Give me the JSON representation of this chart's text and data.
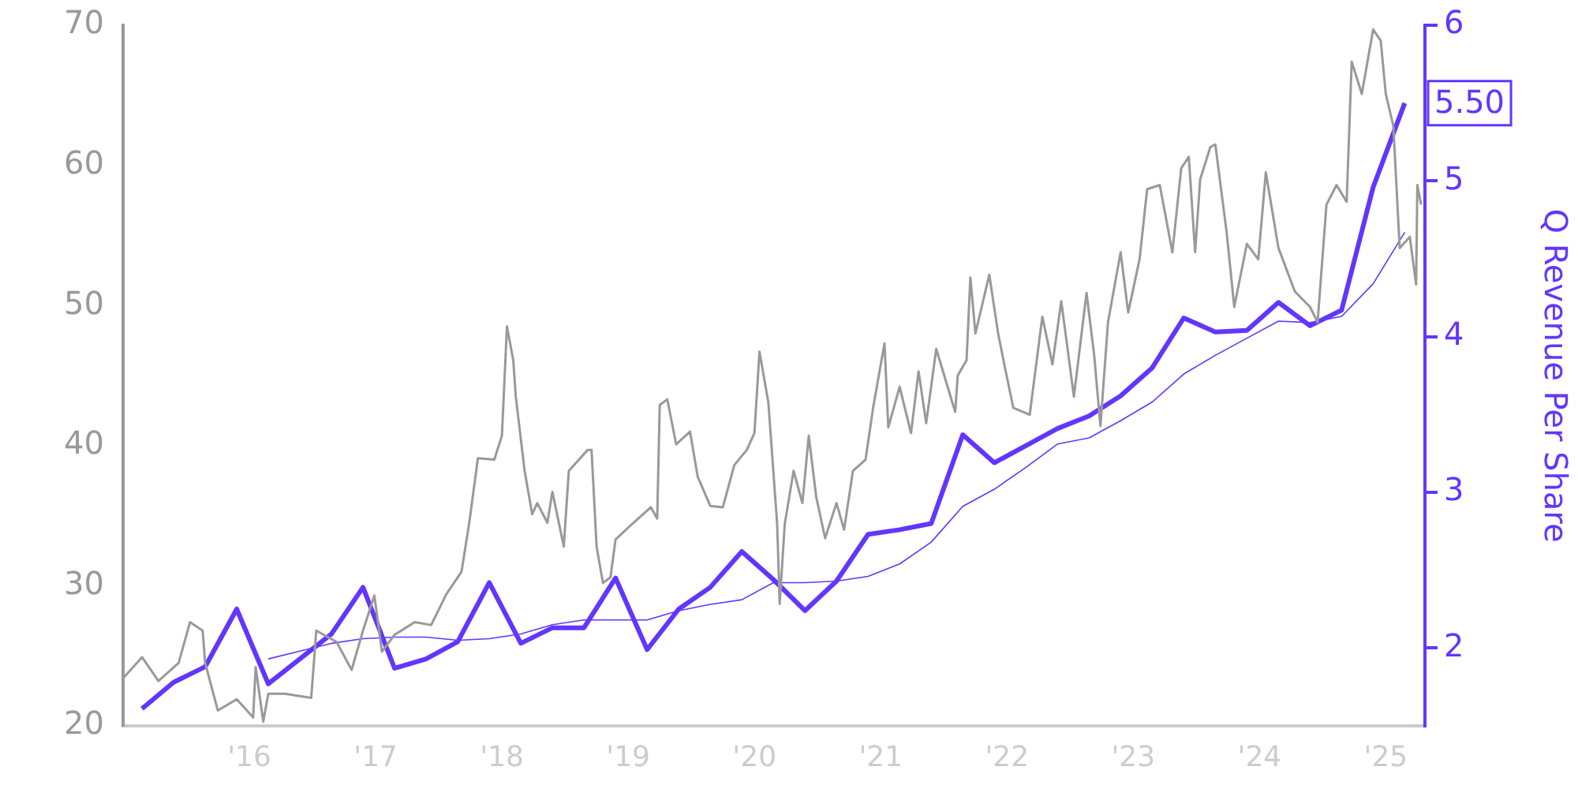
{
  "chart_data": {
    "type": "line",
    "y2label": "Q Revenue Per Share",
    "xlim": [
      2015,
      2025.31
    ],
    "xticks": [
      {
        "value": 2015,
        "label": null
      },
      {
        "value": 2016,
        "label": "'16"
      },
      {
        "value": 2017,
        "label": "'17"
      },
      {
        "value": 2018,
        "label": "'18"
      },
      {
        "value": 2019,
        "label": "'19"
      },
      {
        "value": 2020,
        "label": "'20"
      },
      {
        "value": 2021,
        "label": "'21"
      },
      {
        "value": 2022,
        "label": "'22"
      },
      {
        "value": 2023,
        "label": "'23"
      },
      {
        "value": 2024,
        "label": "'24"
      },
      {
        "value": 2025,
        "label": "'25"
      }
    ],
    "ylim": [
      20,
      70
    ],
    "yticks": [
      20,
      30,
      40,
      50,
      60,
      70
    ],
    "y2lim": [
      1.5,
      6
    ],
    "y2ticks": [
      2,
      3,
      4,
      5,
      6
    ],
    "grid": false,
    "legend": false,
    "marker": "none",
    "line_style": "solid",
    "series": [
      {
        "color": "#999999",
        "x": [
          2015.0,
          2015.15,
          2015.28,
          2015.44,
          2015.53,
          2015.63,
          2015.65,
          2015.75,
          2015.9,
          2016.03,
          2016.05,
          2016.11,
          2016.15,
          2016.28,
          2016.49,
          2016.53,
          2016.69,
          2016.81,
          2016.9,
          2016.99,
          2017.05,
          2017.15,
          2017.31,
          2017.44,
          2017.56,
          2017.68,
          2017.74,
          2017.81,
          2017.94,
          2018.0,
          2018.04,
          2018.09,
          2018.11,
          2018.18,
          2018.24,
          2018.28,
          2018.36,
          2018.4,
          2018.49,
          2018.53,
          2018.68,
          2018.71,
          2018.75,
          2018.8,
          2018.86,
          2018.9,
          2019.03,
          2019.18,
          2019.23,
          2019.25,
          2019.31,
          2019.38,
          2019.49,
          2019.55,
          2019.65,
          2019.75,
          2019.84,
          2019.94,
          2020.0,
          2020.04,
          2020.11,
          2020.18,
          2020.2,
          2020.24,
          2020.31,
          2020.38,
          2020.43,
          2020.49,
          2020.56,
          2020.65,
          2020.71,
          2020.78,
          2020.88,
          2020.94,
          2021.03,
          2021.06,
          2021.15,
          2021.24,
          2021.3,
          2021.36,
          2021.44,
          2021.53,
          2021.59,
          2021.61,
          2021.68,
          2021.71,
          2021.75,
          2021.86,
          2021.93,
          2021.99,
          2022.05,
          2022.18,
          2022.28,
          2022.36,
          2022.43,
          2022.53,
          2022.63,
          2022.69,
          2022.74,
          2022.8,
          2022.9,
          2022.96,
          2023.05,
          2023.11,
          2023.21,
          2023.31,
          2023.38,
          2023.44,
          2023.49,
          2023.53,
          2023.61,
          2023.65,
          2023.74,
          2023.8,
          2023.9,
          2023.99,
          2024.05,
          2024.15,
          2024.28,
          2024.4,
          2024.46,
          2024.53,
          2024.61,
          2024.69,
          2024.73,
          2024.81,
          2024.9,
          2024.96,
          2025.0,
          2025.06,
          2025.11,
          2025.19,
          2025.24,
          2025.25,
          2025.28
        ],
        "values": [
          23.4,
          24.9,
          23.2,
          24.5,
          27.4,
          26.8,
          24.5,
          21.1,
          21.9,
          20.6,
          24.2,
          20.3,
          22.3,
          22.3,
          22.0,
          26.8,
          26.0,
          24.0,
          26.8,
          29.3,
          25.3,
          26.5,
          27.4,
          27.2,
          29.4,
          31.0,
          34.4,
          39.1,
          39.0,
          40.7,
          48.5,
          46.1,
          43.5,
          38.2,
          35.1,
          35.9,
          34.5,
          36.7,
          32.8,
          38.2,
          39.7,
          39.7,
          32.8,
          30.2,
          30.6,
          33.3,
          34.4,
          35.6,
          34.8,
          42.9,
          43.3,
          40.1,
          41.0,
          37.8,
          35.7,
          35.6,
          38.6,
          39.7,
          40.9,
          46.7,
          43.1,
          34.4,
          28.7,
          34.4,
          38.2,
          35.9,
          40.7,
          36.3,
          33.4,
          35.9,
          34.0,
          38.2,
          39.0,
          42.7,
          47.3,
          41.3,
          44.2,
          40.9,
          45.3,
          41.6,
          46.9,
          44.2,
          42.4,
          45.0,
          46.1,
          52.0,
          48.0,
          52.2,
          48.0,
          45.3,
          42.7,
          42.2,
          49.2,
          45.8,
          50.3,
          43.5,
          50.9,
          46.5,
          41.4,
          48.8,
          53.8,
          49.5,
          53.3,
          58.3,
          58.6,
          53.8,
          59.8,
          60.6,
          53.8,
          59.0,
          61.3,
          61.5,
          55.2,
          49.9,
          54.4,
          53.3,
          59.5,
          54.1,
          51.0,
          49.9,
          48.8,
          57.2,
          58.6,
          57.4,
          67.4,
          65.1,
          69.7,
          68.9,
          65.1,
          62.8,
          54.1,
          54.9,
          51.5,
          58.6,
          57.2
        ]
      },
      {
        "color": "#6236ff",
        "axis": "y2",
        "x": [
          2015.15,
          2015.4,
          2015.65,
          2015.9,
          2016.15,
          2016.4,
          2016.65,
          2016.9,
          2017.15,
          2017.4,
          2017.65,
          2017.9,
          2018.15,
          2018.4,
          2018.65,
          2018.9,
          2019.15,
          2019.4,
          2019.65,
          2019.9,
          2020.15,
          2020.4,
          2020.65,
          2020.9,
          2021.15,
          2021.4,
          2021.65,
          2021.9,
          2022.15,
          2022.4,
          2022.65,
          2022.9,
          2023.15,
          2023.4,
          2023.65,
          2023.9,
          2024.15,
          2024.4,
          2024.65,
          2024.9,
          2025.15
        ],
        "values": [
          1.61,
          1.78,
          1.88,
          2.25,
          1.77,
          1.93,
          2.09,
          2.39,
          1.87,
          1.93,
          2.04,
          2.42,
          2.03,
          2.13,
          2.13,
          2.45,
          1.99,
          2.25,
          2.39,
          2.62,
          2.44,
          2.24,
          2.43,
          2.73,
          2.76,
          2.8,
          3.37,
          3.19,
          3.3,
          3.41,
          3.49,
          3.62,
          3.8,
          4.12,
          4.03,
          4.04,
          4.22,
          4.07,
          4.17,
          4.96,
          5.5
        ],
        "value_labels": [
          null,
          null,
          null,
          null,
          null,
          null,
          null,
          null,
          null,
          null,
          null,
          null,
          null,
          null,
          null,
          null,
          null,
          null,
          null,
          null,
          null,
          null,
          null,
          null,
          null,
          null,
          null,
          null,
          null,
          null,
          null,
          null,
          null,
          null,
          null,
          null,
          null,
          null,
          null,
          null,
          "5.50"
        ]
      },
      {
        "color": "#6236ff",
        "axis": "y2",
        "x": [
          2016.15,
          2016.4,
          2016.65,
          2016.9,
          2017.15,
          2017.4,
          2017.65,
          2017.9,
          2018.15,
          2018.4,
          2018.65,
          2018.9,
          2019.15,
          2019.4,
          2019.65,
          2019.9,
          2020.15,
          2020.4,
          2020.65,
          2020.9,
          2021.15,
          2021.4,
          2021.65,
          2021.9,
          2022.15,
          2022.4,
          2022.65,
          2022.9,
          2023.15,
          2023.4,
          2023.65,
          2023.9,
          2024.15,
          2024.4,
          2024.65,
          2024.9,
          2025.15
        ],
        "values": [
          1.93,
          1.98,
          2.03,
          2.06,
          2.07,
          2.07,
          2.05,
          2.06,
          2.09,
          2.15,
          2.18,
          2.18,
          2.18,
          2.24,
          2.28,
          2.31,
          2.42,
          2.42,
          2.43,
          2.46,
          2.54,
          2.68,
          2.91,
          3.02,
          3.16,
          3.31,
          3.35,
          3.46,
          3.58,
          3.76,
          3.88,
          3.99,
          4.1,
          4.09,
          4.13,
          4.34,
          4.67
        ]
      }
    ]
  }
}
